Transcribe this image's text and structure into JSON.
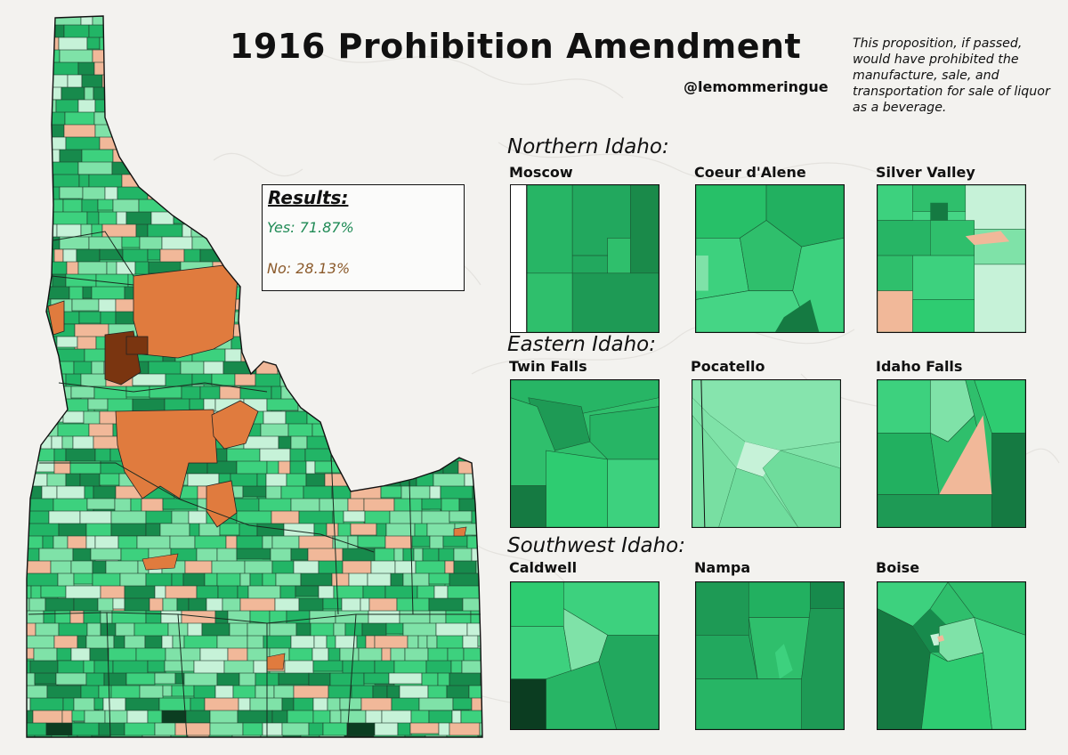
{
  "title": "1916 Prohibition Amendment",
  "author": "@lemommeringue",
  "description": "This proposition, if passed, would have prohibited the manufacture, sale, and transportation for sale of liquor as a beverage.",
  "results": {
    "heading": "Results:",
    "yes": "Yes: 71.87%",
    "no": "No: 28.13%",
    "yes_pct": 71.87,
    "no_pct": 28.13
  },
  "colors": {
    "yes_light": "#c6f2d8",
    "yes_mid_light": "#7fe2a8",
    "yes_mid": "#3dd17e",
    "yes_strong": "#22b566",
    "yes_dark": "#178a4c",
    "yes_darkest": "#0b3d21",
    "no_light": "#f1b899",
    "no_mid": "#e07b3e",
    "no_dark": "#7a3510",
    "border": "#222222",
    "background": "#f3f2ef"
  },
  "regions": [
    {
      "title": "Northern Idaho:",
      "insets": [
        {
          "label": "Moscow"
        },
        {
          "label": "Coeur d'Alene"
        },
        {
          "label": "Silver Valley"
        }
      ]
    },
    {
      "title": "Eastern Idaho:",
      "insets": [
        {
          "label": "Twin Falls"
        },
        {
          "label": "Pocatello"
        },
        {
          "label": "Idaho Falls"
        }
      ]
    },
    {
      "title": "Southwest Idaho:",
      "insets": [
        {
          "label": "Caldwell"
        },
        {
          "label": "Nampa"
        },
        {
          "label": "Boise"
        }
      ]
    }
  ]
}
